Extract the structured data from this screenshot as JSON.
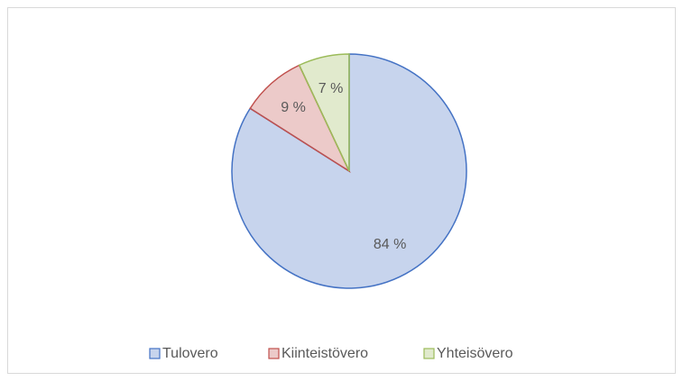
{
  "chart_data": {
    "type": "pie",
    "categories": [
      "Tulovero",
      "Kiinteistövero",
      "Yhteisövero"
    ],
    "values": [
      84,
      9,
      7
    ],
    "value_labels": [
      "84 %",
      "9 %",
      "7 %"
    ],
    "colors": [
      "#4472c4",
      "#c0504d",
      "#9bbb59"
    ],
    "legend": "bottom"
  }
}
